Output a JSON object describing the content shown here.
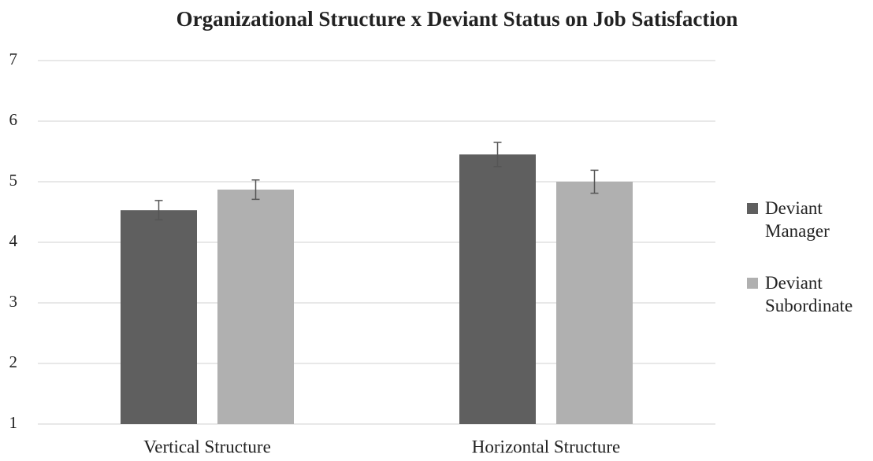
{
  "chart_data": {
    "type": "bar",
    "title": "Organizational  Structure x Deviant Status on Job Satisfaction",
    "categories": [
      "Vertical Structure",
      "Horizontal Structure"
    ],
    "series": [
      {
        "name": "Deviant Manager",
        "color": "#5f5f5f",
        "values": [
          4.53,
          5.45
        ],
        "errors": [
          0.16,
          0.2
        ]
      },
      {
        "name": "Deviant Subordinate",
        "color": "#b0b0b0",
        "values": [
          4.87,
          5.0
        ],
        "errors": [
          0.16,
          0.19
        ]
      }
    ],
    "ylim": [
      1,
      7
    ],
    "yticks": [
      1,
      2,
      3,
      4,
      5,
      6,
      7
    ],
    "grid": true,
    "legend": "right"
  }
}
